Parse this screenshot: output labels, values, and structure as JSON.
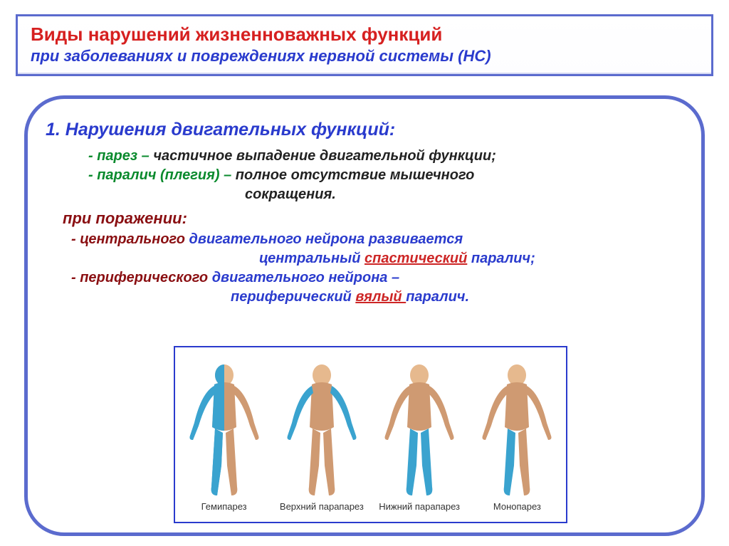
{
  "colors": {
    "frame": "#5b6bce",
    "title_red": "#d62020",
    "blue": "#2a3bcd",
    "green": "#0a8a2d",
    "darkred": "#8a0f12",
    "red": "#cd2626",
    "skin": "#e6b98e",
    "muscle": "#cf9a72",
    "affect": "#3aa3cf",
    "figure_bg": "#ffffff"
  },
  "title": {
    "line1": "Виды нарушений жизненноважных функций",
    "line2": "при заболеваниях и повреждениях нервной системы (НС)"
  },
  "section": {
    "heading": "1.  Нарушения двигательных функций:",
    "item_paresis_label": "-  парез –",
    "item_paresis_text": " частичное выпадение двигательной функции;",
    "item_plegia_label": "-  паралич (плегия) –",
    "item_plegia_text": " полное отсутствие мышечного",
    "item_plegia_text2": "сокращения.",
    "when": "при поражении:",
    "central1": "- центрального",
    "central2": " двигательного нейрона развивается",
    "central3": "центральный ",
    "central4": "спастический",
    "central5": " паралич;",
    "periph1": "- периферического",
    "periph2": " двигательного нейрона –",
    "periph3": "периферический ",
    "periph4": "вялый ",
    "periph5": "паралич."
  },
  "figure": {
    "type": "infographic",
    "labels": [
      "Гемипарез",
      "Верхний парапарез",
      "Нижний парапарез",
      "Монопарез"
    ],
    "panels": [
      {
        "name": "hemiparesis",
        "affected": "right-half"
      },
      {
        "name": "upper-paraparesis",
        "affected": "both-arms"
      },
      {
        "name": "lower-paraparesis",
        "affected": "both-legs"
      },
      {
        "name": "monoparesis",
        "affected": "right-leg"
      }
    ]
  }
}
